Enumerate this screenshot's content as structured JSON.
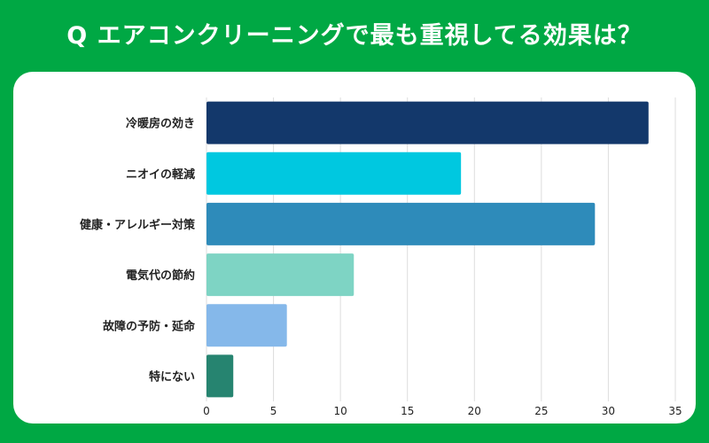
{
  "title": "Q エアコンクリーニングで最も重視してる効果は？",
  "chart_data": {
    "type": "bar",
    "orientation": "horizontal",
    "title": "Q エアコンクリーニングで最も重視してる効果は？",
    "categories": [
      "冷暖房の効き",
      "ニオイの軽減",
      "健康・アレルギー対策",
      "電気代の節約",
      "故障の予防・延命",
      "特にない"
    ],
    "values": [
      33,
      19,
      29,
      11,
      6,
      2
    ],
    "colors": [
      "#13386b",
      "#00c8e0",
      "#2e8bba",
      "#7ed4c4",
      "#85b8ea",
      "#268470"
    ],
    "xlim": [
      0,
      35
    ],
    "xticks": [
      "0",
      "5",
      "10",
      "15",
      "20",
      "25",
      "30",
      "35"
    ],
    "xlabel": "",
    "ylabel": "",
    "grid": true
  }
}
